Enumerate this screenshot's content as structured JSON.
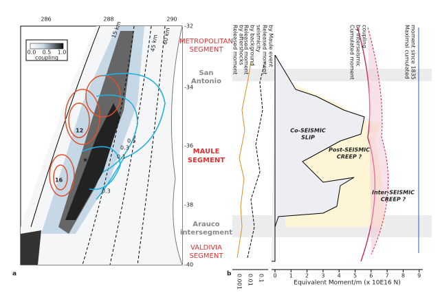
{
  "panel_a": {
    "letter": "a",
    "lon_ticks": [
      "286",
      "288",
      "290"
    ],
    "lat_ticks": [
      "-32",
      "-34",
      "-36",
      "-38",
      "-40"
    ],
    "colorbar": {
      "ticks": [
        "0.0",
        "0.5",
        "1.0"
      ],
      "label": "coupling"
    },
    "depth_labels": [
      "15 km",
      "45 km",
      "60 km"
    ],
    "contour_labels": [
      "0.5",
      "0.3",
      "0.1",
      "0.3",
      "16",
      "12"
    ],
    "segments": [
      {
        "lines": [
          "METROPOLITAN",
          "SEGMENT"
        ]
      },
      {
        "lines": [
          "San",
          "Antonio"
        ]
      },
      {
        "lines": [
          "MAULE",
          "SEGMENT"
        ]
      },
      {
        "lines": [
          "Arauco",
          "intersegment"
        ]
      },
      {
        "lines": [
          "VALDIVIA",
          "SEGMENT"
        ]
      }
    ]
  },
  "panel_b": {
    "letter": "b",
    "x_ticks": [
      "0",
      "1",
      "2",
      "3",
      "4",
      "5",
      "6",
      "7",
      "8",
      "9"
    ],
    "log_ticks": [
      "0.001",
      "0.01",
      "0.1"
    ],
    "x_label": "Equivalent Moment/m (x 10E16 N)",
    "column_labels": [
      {
        "lines": [
          "Released moment",
          "by aftershocks"
        ]
      },
      {
        "lines": [
          "Released moment",
          "by background",
          "seismicity"
        ]
      },
      {
        "lines": [
          "Released moment",
          "by Maule event"
        ]
      },
      {
        "lines": [
          "Cumulated moment",
          "by interseismic",
          "coupling"
        ]
      },
      {
        "lines": [
          "Maximal cumulated",
          "moment since 1835"
        ]
      }
    ],
    "region_labels": [
      [
        "Co-SEISMIC",
        "SLIP"
      ],
      [
        "Post-SEISMIC",
        "CREEP ?"
      ],
      [
        "Inter-SEISMIC",
        "CREEP ?"
      ]
    ]
  }
}
